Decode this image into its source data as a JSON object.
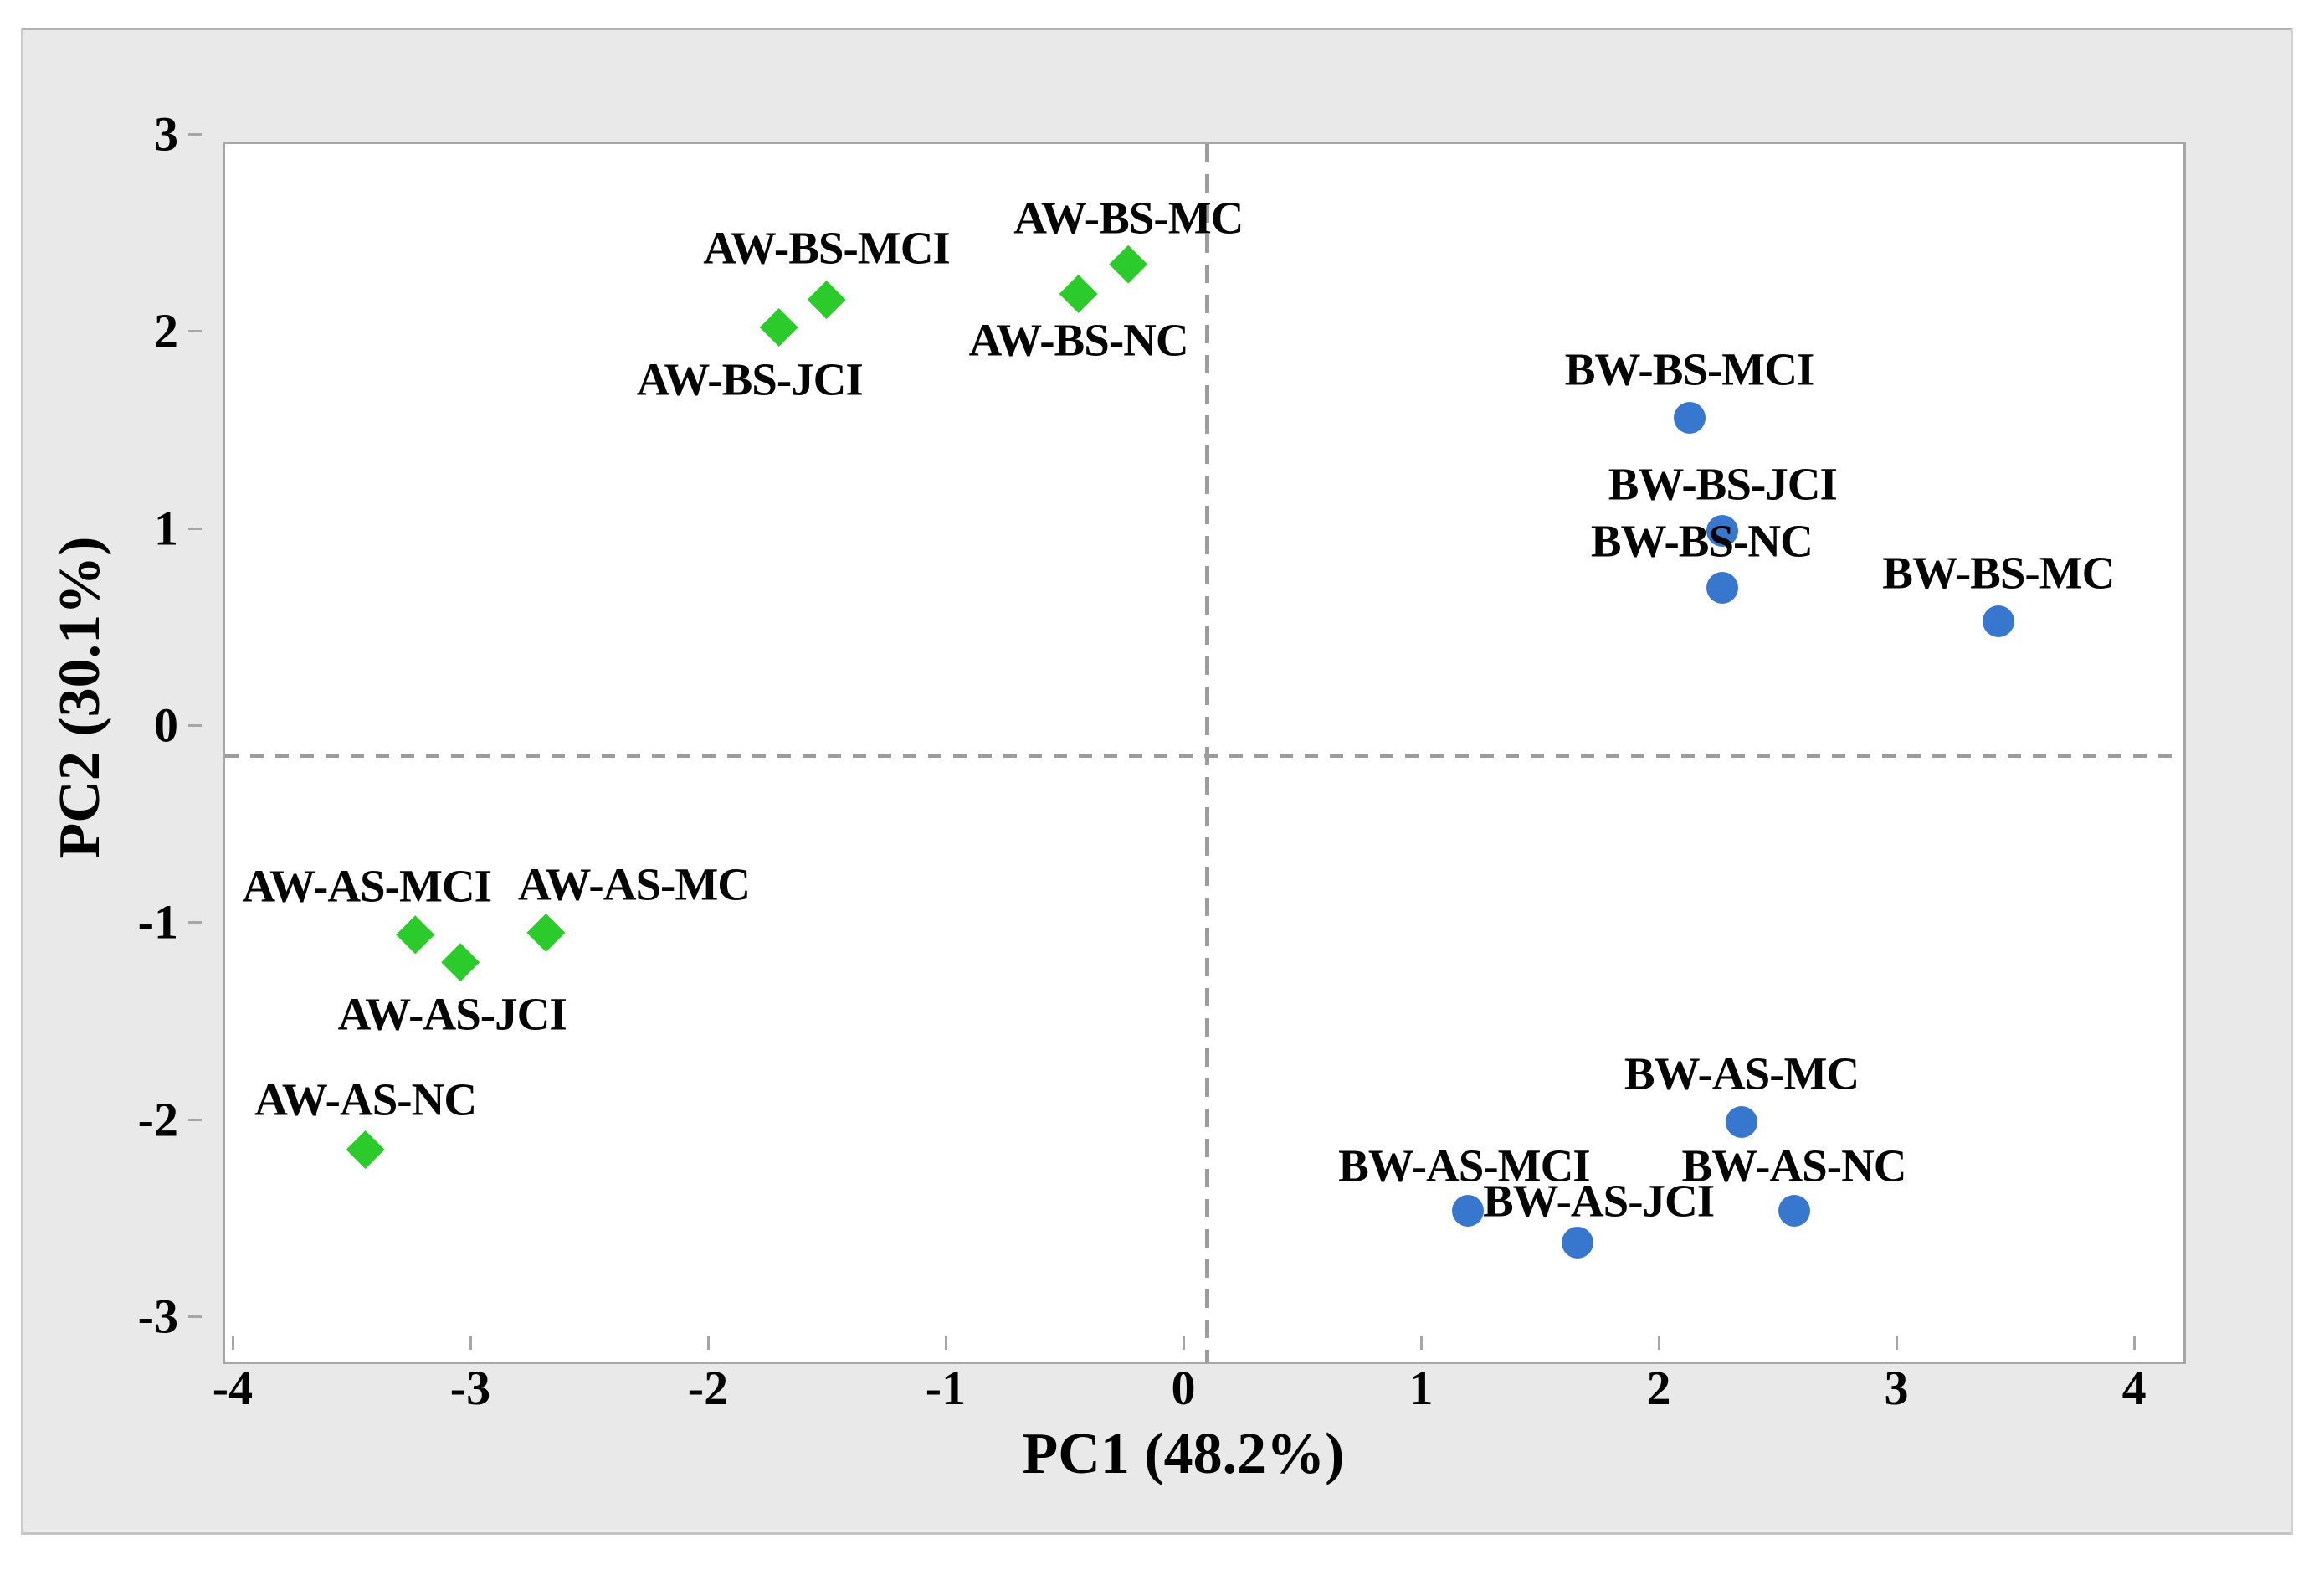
{
  "page": {
    "background_color": "#ffffff",
    "panel_background_color": "#e9e9e9",
    "plot_background_color": "#ffffff",
    "frame_color": "#a6a6a6",
    "zero_line_color": "#9c9c9c",
    "text_color": "#000000"
  },
  "chart_data": {
    "type": "scatter",
    "title": "",
    "xlabel": "PC1 (48.2%)",
    "ylabel": "PC2 (30.1%)",
    "xlim": [
      -4.13,
      4.13
    ],
    "ylim": [
      -3.1,
      3.1
    ],
    "x_ticks": [
      -4,
      -3,
      -2,
      -1,
      0,
      1,
      2,
      3,
      4
    ],
    "y_ticks": [
      3,
      2,
      1,
      0,
      -1,
      -2,
      -3
    ],
    "grid": false,
    "legend": false,
    "zero_lines": true,
    "series": [
      {
        "name": "AW",
        "marker": "diamond",
        "color": "#2bcb2b",
        "points": [
          {
            "label": "AW-BS-MCI",
            "x": -1.6,
            "y": 2.31,
            "label_dx": 0,
            "label_dy": -62
          },
          {
            "label": "AW-BS-JCI",
            "x": -1.8,
            "y": 2.17,
            "label_dx": -35,
            "label_dy": 62
          },
          {
            "label": "AW-BS-NC",
            "x": -0.54,
            "y": 2.34,
            "label_dx": 0,
            "label_dy": 55
          },
          {
            "label": "AW-BS-MC",
            "x": -0.33,
            "y": 2.49,
            "label_dx": 0,
            "label_dy": -56
          },
          {
            "label": "AW-AS-MCI",
            "x": -3.33,
            "y": -0.91,
            "label_dx": -58,
            "label_dy": -58
          },
          {
            "label": "AW-AS-JCI",
            "x": -3.14,
            "y": -1.05,
            "label_dx": -10,
            "label_dy": 62
          },
          {
            "label": "AW-AS-MC",
            "x": -2.78,
            "y": -0.9,
            "label_dx": 105,
            "label_dy": -58
          },
          {
            "label": "AW-AS-NC",
            "x": -3.54,
            "y": -2.0,
            "label_dx": 0,
            "label_dy": -60
          }
        ]
      },
      {
        "name": "BW",
        "marker": "circle",
        "color": "#3877ce",
        "points": [
          {
            "label": "BW-BS-MCI",
            "x": 2.03,
            "y": 1.71,
            "label_dx": 0,
            "label_dy": -58
          },
          {
            "label": "BW-BS-JCI",
            "x": 2.17,
            "y": 1.14,
            "label_dx": 0,
            "label_dy": -56
          },
          {
            "label": "BW-BS-NC",
            "x": 2.17,
            "y": 0.85,
            "label_dx": -25,
            "label_dy": -56
          },
          {
            "label": "BW-BS-MC",
            "x": 3.33,
            "y": 0.68,
            "label_dx": 0,
            "label_dy": -58
          },
          {
            "label": "BW-AS-MC",
            "x": 2.25,
            "y": -1.86,
            "label_dx": 0,
            "label_dy": -58
          },
          {
            "label": "BW-AS-MCI",
            "x": 1.1,
            "y": -2.31,
            "label_dx": -5,
            "label_dy": -54
          },
          {
            "label": "BW-AS-JCI",
            "x": 1.56,
            "y": -2.47,
            "label_dx": 25,
            "label_dy": -50
          },
          {
            "label": "BW-AS-NC",
            "x": 2.47,
            "y": -2.31,
            "label_dx": 0,
            "label_dy": -54
          }
        ]
      }
    ]
  }
}
